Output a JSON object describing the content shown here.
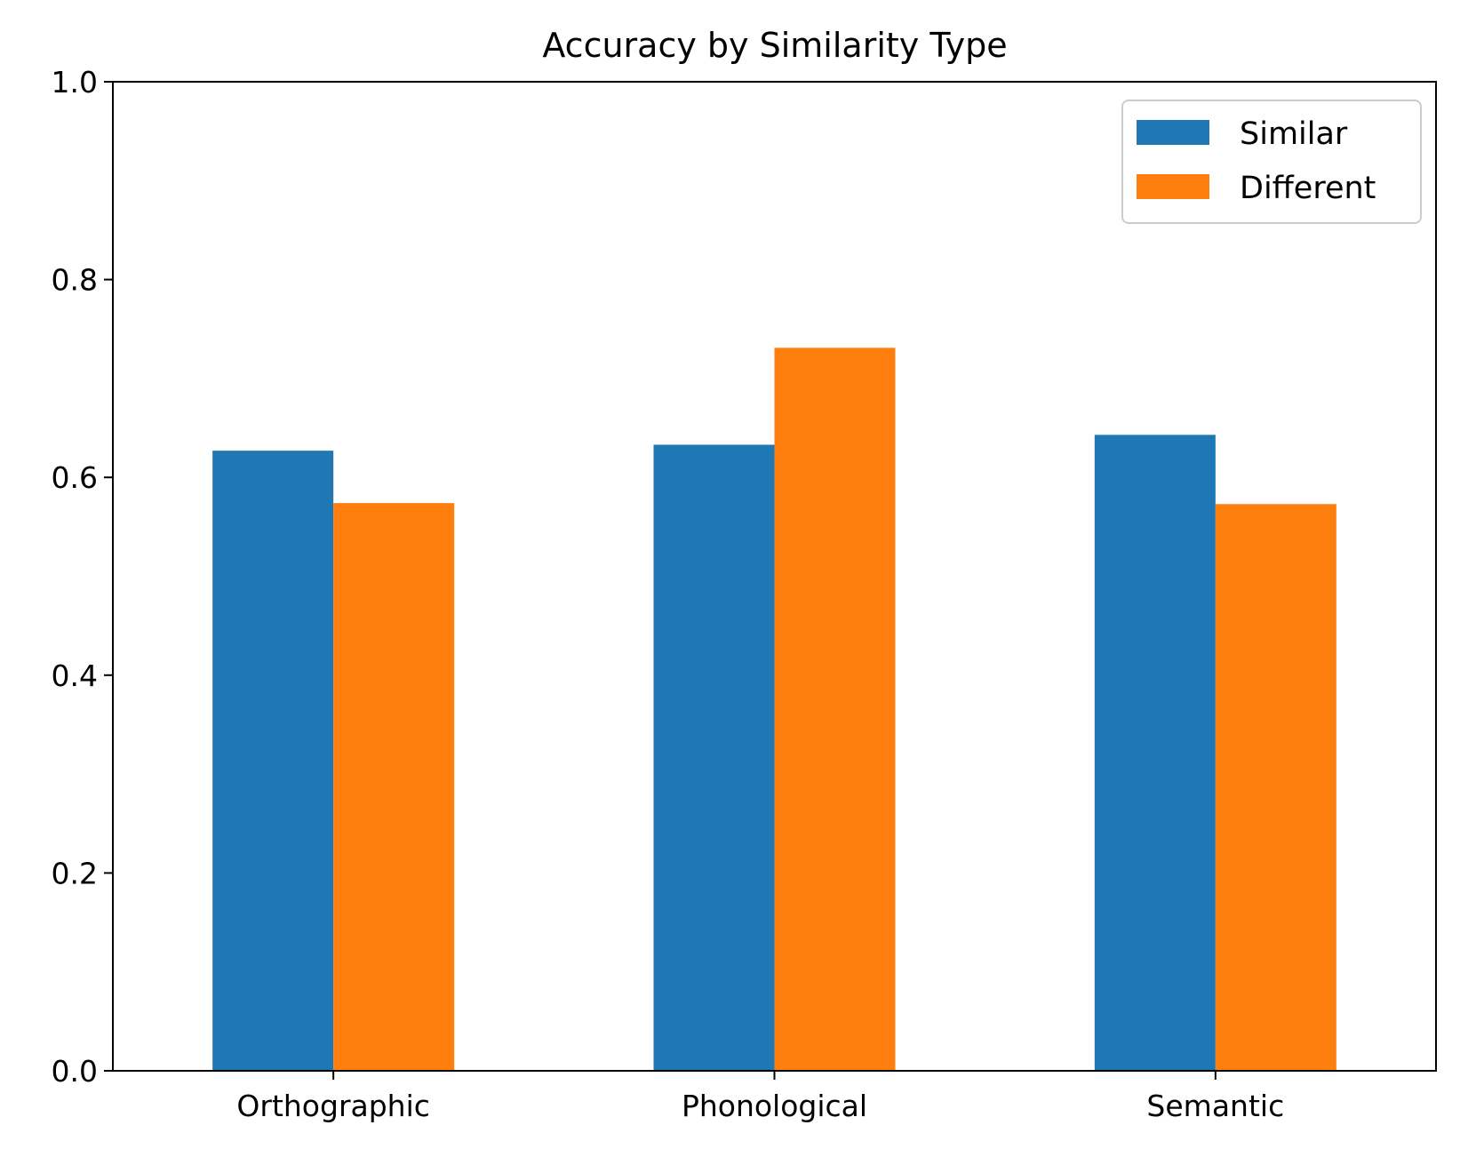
{
  "chart_data": {
    "type": "bar",
    "title": "Accuracy by Similarity Type",
    "xlabel": "",
    "ylabel": "",
    "categories": [
      "Orthographic",
      "Phonological",
      "Semantic"
    ],
    "series": [
      {
        "name": "Similar",
        "color": "#1f77b4",
        "values": [
          0.627,
          0.633,
          0.643
        ]
      },
      {
        "name": "Different",
        "color": "#ff7f0e",
        "values": [
          0.574,
          0.731,
          0.573
        ]
      }
    ],
    "ylim": [
      0,
      1.0
    ],
    "yticks": [
      "0.0",
      "0.2",
      "0.4",
      "0.6",
      "0.8",
      "1.0"
    ],
    "grid": false,
    "legend_position": "top-right"
  }
}
